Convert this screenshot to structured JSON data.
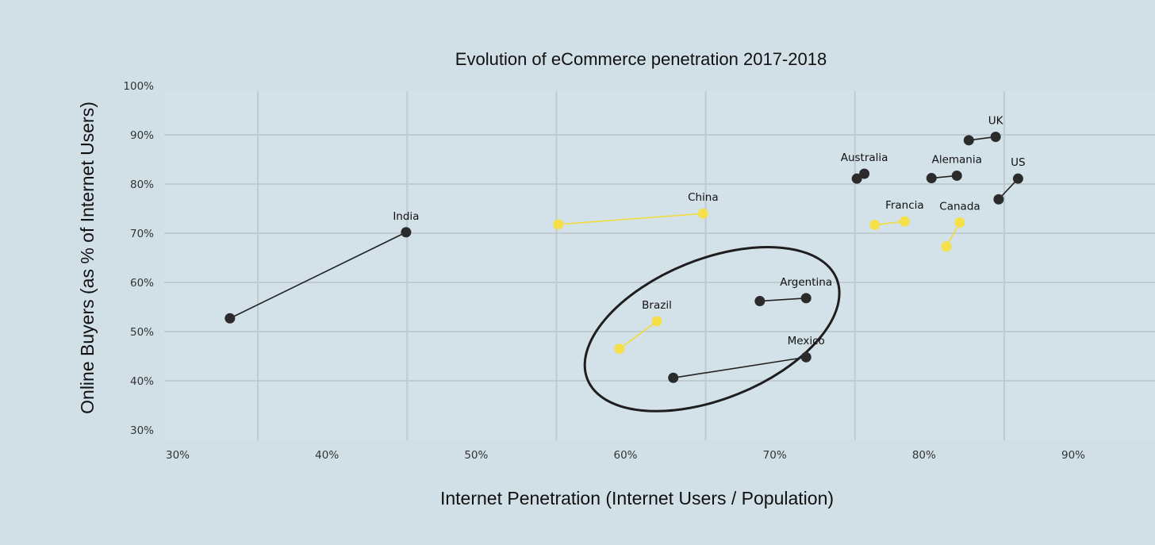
{
  "colors": {
    "background": "#d1e0e7",
    "plot_background": "#d3e1e8",
    "grid": "#bfcbd1",
    "dark_series": "#2b2b2b",
    "highlight_series": "#f5e04a"
  },
  "chart_data": {
    "type": "scatter",
    "title": "Evolution of eCommerce penetration 2017-2018",
    "xlabel": "Internet Penetration (Internet Users / Population)",
    "ylabel": "Online Buyers (as % of Internet Users)",
    "xlim": [
      30,
      95
    ],
    "ylim": [
      30,
      100
    ],
    "x_ticks": [
      30,
      40,
      50,
      60,
      70,
      80,
      90
    ],
    "y_ticks": [
      30,
      40,
      50,
      60,
      70,
      80,
      90,
      100
    ],
    "tick_suffix": "%",
    "grid": true,
    "series": [
      {
        "name": "India",
        "color": "dark",
        "label_at": "end",
        "points": [
          [
            33.5,
            52.7
          ],
          [
            45.3,
            70.2
          ]
        ]
      },
      {
        "name": "China",
        "color": "highlight",
        "label_at": "end",
        "points": [
          [
            55.5,
            71.8
          ],
          [
            65.2,
            74.0
          ]
        ]
      },
      {
        "name": "Brazil",
        "color": "highlight",
        "label_at": "end",
        "points": [
          [
            59.6,
            46.5
          ],
          [
            62.1,
            52.1
          ]
        ]
      },
      {
        "name": "Argentina",
        "color": "dark",
        "label_at": "end",
        "points": [
          [
            69.0,
            56.2
          ],
          [
            72.1,
            56.8
          ]
        ]
      },
      {
        "name": "Mexico",
        "color": "dark",
        "label_at": "end",
        "points": [
          [
            63.2,
            40.6
          ],
          [
            72.1,
            44.8
          ]
        ]
      },
      {
        "name": "Australia",
        "color": "dark",
        "label_at": "end",
        "points": [
          [
            75.5,
            81.1
          ],
          [
            76.0,
            82.1
          ]
        ]
      },
      {
        "name": "Francia",
        "color": "highlight",
        "label_at": "end",
        "points": [
          [
            76.7,
            71.7
          ],
          [
            78.7,
            72.4
          ]
        ]
      },
      {
        "name": "Alemania",
        "color": "dark",
        "label_at": "end",
        "points": [
          [
            80.5,
            81.2
          ],
          [
            82.2,
            81.7
          ]
        ]
      },
      {
        "name": "Canada",
        "color": "highlight",
        "label_at": "end",
        "points": [
          [
            81.5,
            67.3
          ],
          [
            82.4,
            72.2
          ]
        ]
      },
      {
        "name": "UK",
        "color": "dark",
        "label_at": "end",
        "points": [
          [
            83.0,
            88.9
          ],
          [
            84.8,
            89.6
          ]
        ]
      },
      {
        "name": "US",
        "color": "dark",
        "label_at": "end",
        "points": [
          [
            85.0,
            76.9
          ],
          [
            86.3,
            81.1
          ]
        ]
      }
    ],
    "annotations": [
      {
        "type": "ellipse",
        "cx": 65.8,
        "cy": 50.5,
        "rx": 9.0,
        "ry": 14.2,
        "angle": -22
      }
    ]
  }
}
